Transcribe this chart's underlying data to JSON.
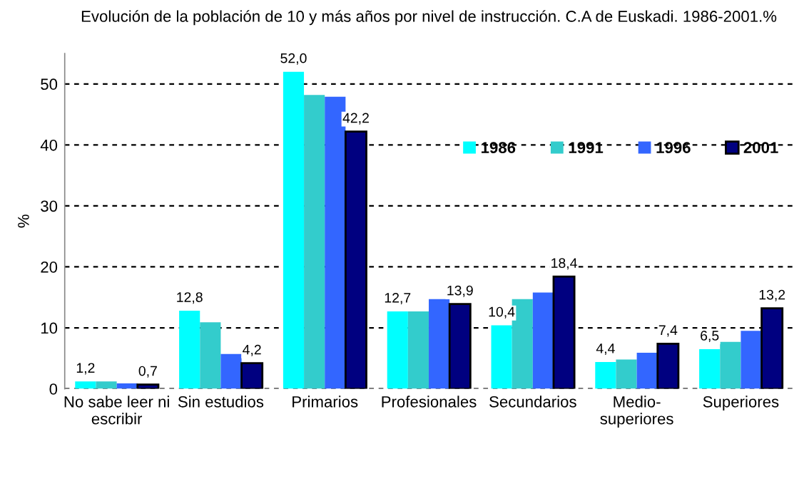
{
  "chart_data": {
    "type": "bar",
    "title": "Evolución de la población de 10 y más años por nivel de instrucción. C.A de Euskadi. 1986-2001.%",
    "ylabel": "%",
    "categories": [
      "No sabe leer ni escribir",
      "Sin estudios",
      "Primarios",
      "Profesionales",
      "Secundarios",
      "Medio-superiores",
      "Superiores"
    ],
    "series": [
      {
        "name": "1986",
        "color": "#00ffff",
        "values": [
          1.2,
          12.8,
          52.0,
          12.7,
          10.4,
          4.4,
          6.5
        ],
        "value_labels": [
          "1,2",
          "12,8",
          "52,0",
          "12,7",
          "10,4",
          "4,4",
          "6,5"
        ]
      },
      {
        "name": "1991",
        "color": "#33cccc",
        "values": [
          1.2,
          10.9,
          48.2,
          12.7,
          14.7,
          4.8,
          7.7
        ],
        "value_labels": [
          null,
          null,
          null,
          null,
          null,
          null,
          null
        ]
      },
      {
        "name": "1996",
        "color": "#3366ff",
        "values": [
          0.9,
          5.7,
          47.9,
          14.7,
          15.8,
          5.9,
          9.5
        ],
        "value_labels": [
          null,
          null,
          null,
          null,
          null,
          null,
          null
        ]
      },
      {
        "name": "2001",
        "color": "#000080",
        "values": [
          0.7,
          4.2,
          42.2,
          13.9,
          18.4,
          7.4,
          13.2
        ],
        "value_labels": [
          "0,7",
          "4,2",
          "42,2",
          "13,9",
          "18,4",
          "7,4",
          "13,2"
        ]
      }
    ],
    "ylim": [
      0,
      55
    ],
    "yticks": [
      0,
      10,
      20,
      30,
      40,
      50
    ],
    "grid": "y",
    "legend": "top right"
  }
}
